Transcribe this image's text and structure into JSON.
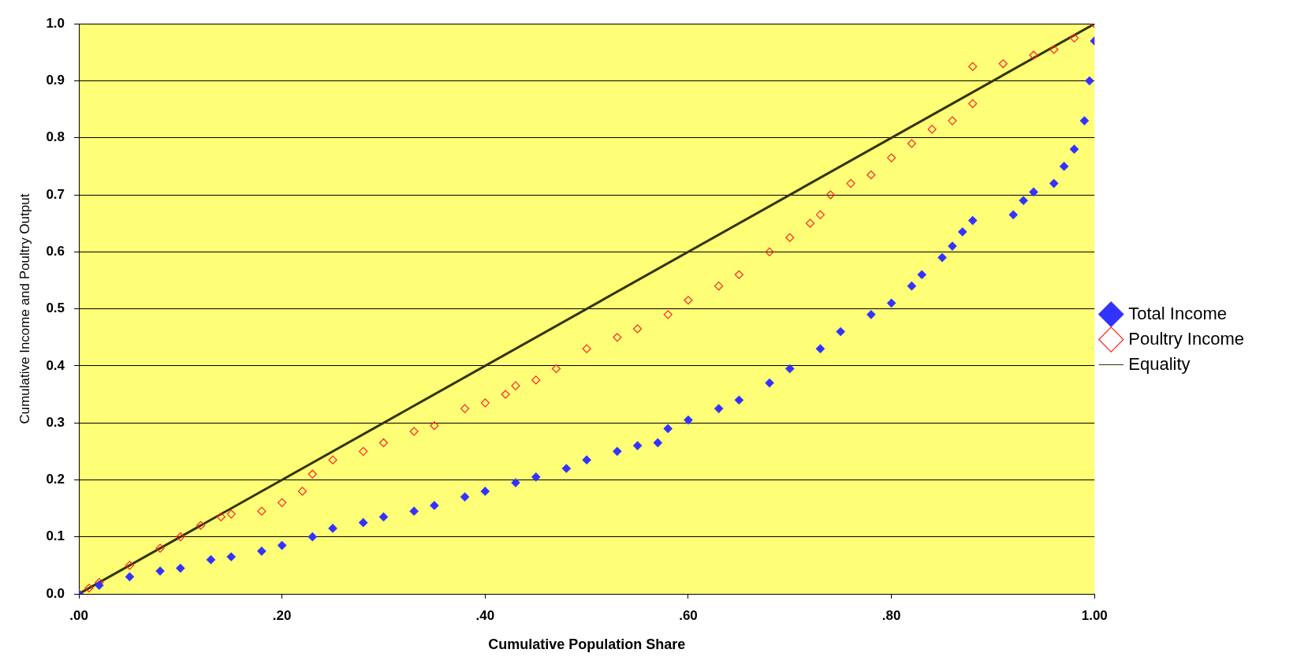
{
  "chart_data": {
    "type": "scatter",
    "xlabel": "Cumulative Population Share",
    "ylabel": "Cumulative Income and Poultry Output",
    "xlim": [
      0,
      1
    ],
    "ylim": [
      0,
      1
    ],
    "xticks": [
      {
        "value": 0,
        "label": ".00"
      },
      {
        "value": 0.2,
        "label": ".20"
      },
      {
        "value": 0.4,
        "label": ".40"
      },
      {
        "value": 0.6,
        "label": ".60"
      },
      {
        "value": 0.8,
        "label": ".80"
      },
      {
        "value": 1,
        "label": "1.00"
      }
    ],
    "yticks": [
      {
        "value": 0,
        "label": "0.0"
      },
      {
        "value": 0.1,
        "label": "0.1"
      },
      {
        "value": 0.2,
        "label": "0.2"
      },
      {
        "value": 0.3,
        "label": "0.3"
      },
      {
        "value": 0.4,
        "label": "0.4"
      },
      {
        "value": 0.5,
        "label": "0.5"
      },
      {
        "value": 0.6,
        "label": "0.6"
      },
      {
        "value": 0.7,
        "label": "0.7"
      },
      {
        "value": 0.8,
        "label": "0.8"
      },
      {
        "value": 0.9,
        "label": "0.9"
      },
      {
        "value": 1,
        "label": "1.0"
      }
    ],
    "grid": "y",
    "legend": "right",
    "series": [
      {
        "name": "Total Income",
        "color": "#3333ff",
        "marker": "diamond",
        "x": [
          0,
          0.02,
          0.05,
          0.08,
          0.1,
          0.13,
          0.15,
          0.18,
          0.2,
          0.23,
          0.25,
          0.28,
          0.3,
          0.33,
          0.35,
          0.38,
          0.4,
          0.43,
          0.45,
          0.48,
          0.5,
          0.53,
          0.55,
          0.57,
          0.58,
          0.6,
          0.63,
          0.65,
          0.68,
          0.7,
          0.73,
          0.75,
          0.78,
          0.8,
          0.82,
          0.83,
          0.85,
          0.86,
          0.87,
          0.88,
          0.92,
          0.93,
          0.94,
          0.96,
          0.97,
          0.98,
          0.99,
          0.995,
          1
        ],
        "values": [
          0,
          0.015,
          0.03,
          0.04,
          0.045,
          0.06,
          0.065,
          0.075,
          0.085,
          0.1,
          0.115,
          0.125,
          0.135,
          0.145,
          0.155,
          0.17,
          0.18,
          0.195,
          0.205,
          0.22,
          0.235,
          0.25,
          0.26,
          0.265,
          0.29,
          0.305,
          0.325,
          0.34,
          0.37,
          0.395,
          0.43,
          0.46,
          0.49,
          0.51,
          0.54,
          0.56,
          0.59,
          0.61,
          0.635,
          0.655,
          0.665,
          0.69,
          0.705,
          0.72,
          0.75,
          0.78,
          0.83,
          0.9,
          0.97
        ]
      },
      {
        "name": "Poultry Income",
        "color": "#ff2222",
        "marker": "diamond_open",
        "x": [
          0,
          0.01,
          0.02,
          0.05,
          0.08,
          0.1,
          0.12,
          0.14,
          0.15,
          0.18,
          0.2,
          0.22,
          0.23,
          0.25,
          0.28,
          0.3,
          0.33,
          0.35,
          0.38,
          0.4,
          0.42,
          0.43,
          0.45,
          0.47,
          0.5,
          0.53,
          0.55,
          0.58,
          0.6,
          0.63,
          0.65,
          0.68,
          0.7,
          0.72,
          0.73,
          0.74,
          0.76,
          0.78,
          0.8,
          0.82,
          0.84,
          0.86,
          0.88,
          0.88,
          0.91,
          0.94,
          0.96,
          0.98,
          1
        ],
        "values": [
          0,
          0.01,
          0.02,
          0.05,
          0.08,
          0.1,
          0.12,
          0.135,
          0.14,
          0.145,
          0.16,
          0.18,
          0.21,
          0.235,
          0.25,
          0.265,
          0.285,
          0.295,
          0.325,
          0.335,
          0.35,
          0.365,
          0.375,
          0.395,
          0.43,
          0.45,
          0.465,
          0.49,
          0.515,
          0.54,
          0.56,
          0.6,
          0.625,
          0.65,
          0.665,
          0.7,
          0.72,
          0.735,
          0.765,
          0.79,
          0.815,
          0.83,
          0.86,
          0.925,
          0.93,
          0.945,
          0.955,
          0.975,
          1
        ]
      },
      {
        "name": "Equality",
        "type": "line",
        "color": "#333300",
        "marker": "none",
        "x": [
          0,
          1
        ],
        "values": [
          0,
          1
        ]
      }
    ]
  }
}
